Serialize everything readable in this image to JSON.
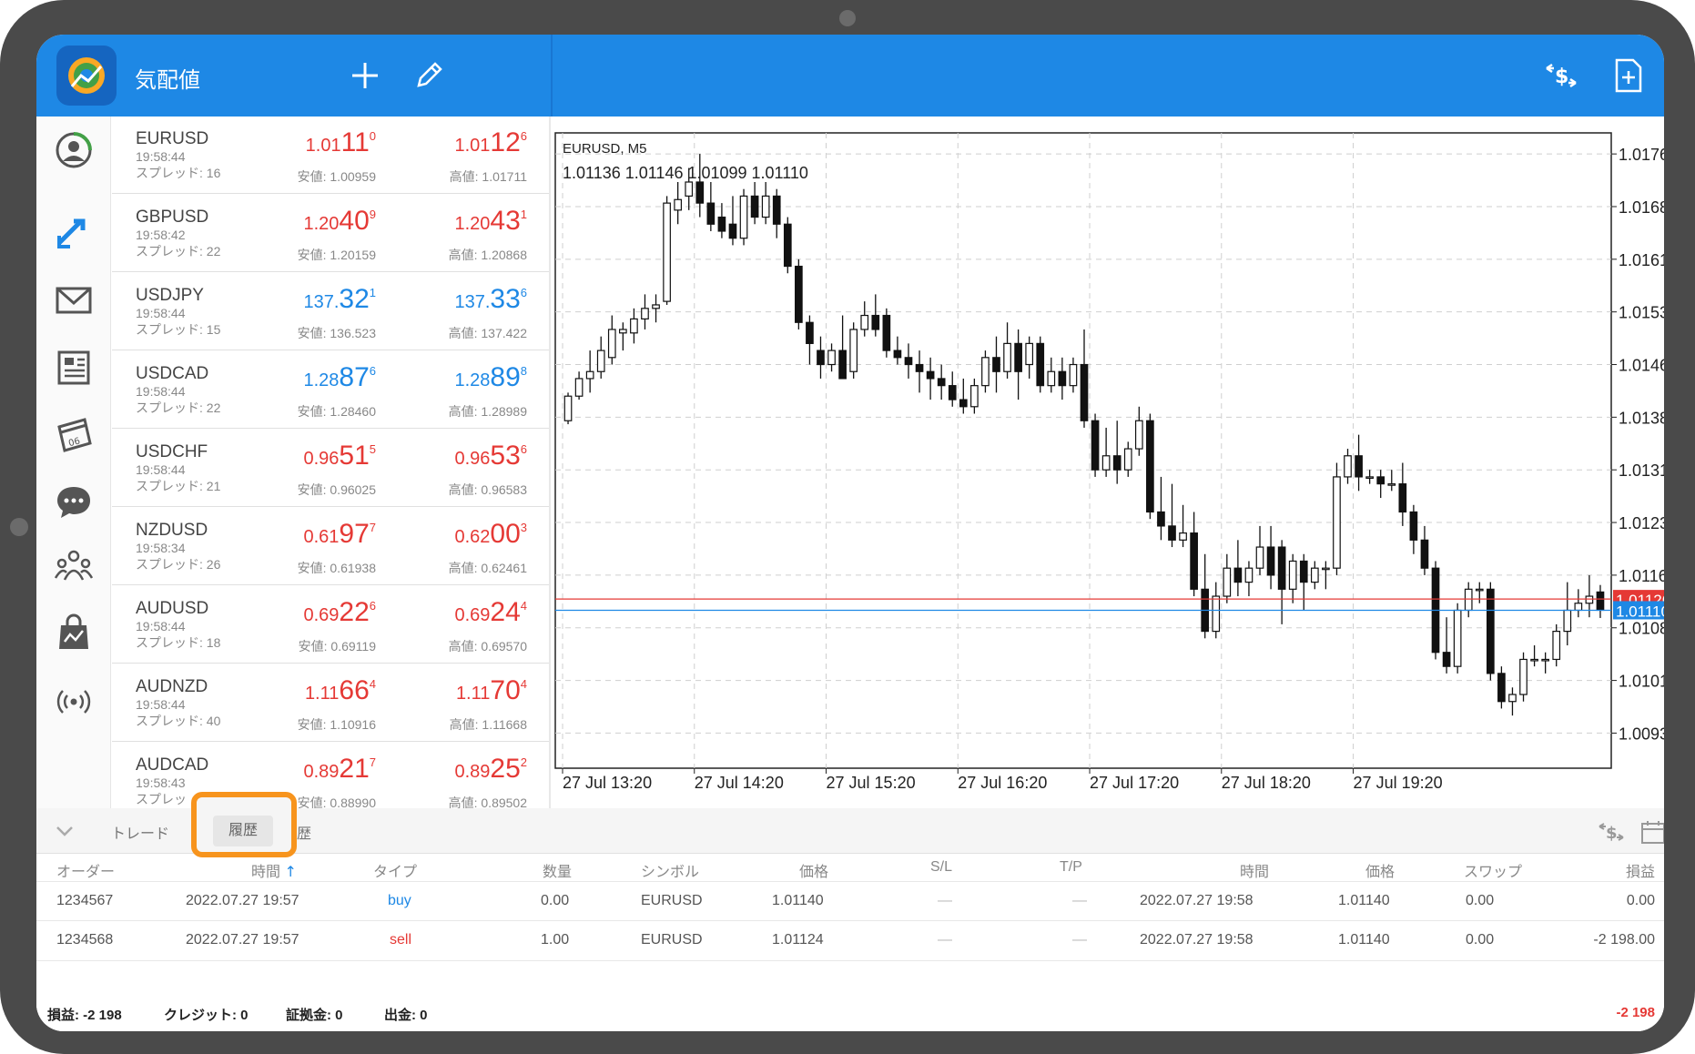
{
  "app": {
    "title": "気配値",
    "add_label": "+",
    "brand_color": "#1e88e5"
  },
  "rail_icons": [
    "account-icon",
    "trade-arrows-icon",
    "mail-icon",
    "news-icon",
    "calendar-icon",
    "chat-icon",
    "community-icon",
    "market-icon",
    "signal-icon"
  ],
  "quotes": [
    {
      "symbol": "EURUSD",
      "time": "19:58:44",
      "spread": "スプレッド: 16",
      "bid_pre": "1.01",
      "bid_big": "11",
      "bid_sup": "0",
      "ask_pre": "1.01",
      "ask_big": "12",
      "ask_sup": "6",
      "low": "安値: 1.00959",
      "high": "高値: 1.01711",
      "color": "red"
    },
    {
      "symbol": "GBPUSD",
      "time": "19:58:42",
      "spread": "スプレッド: 22",
      "bid_pre": "1.20",
      "bid_big": "40",
      "bid_sup": "9",
      "ask_pre": "1.20",
      "ask_big": "43",
      "ask_sup": "1",
      "low": "安値: 1.20159",
      "high": "高値: 1.20868",
      "color": "red"
    },
    {
      "symbol": "USDJPY",
      "time": "19:58:44",
      "spread": "スプレッド: 15",
      "bid_pre": "137.",
      "bid_big": "32",
      "bid_sup": "1",
      "ask_pre": "137.",
      "ask_big": "33",
      "ask_sup": "6",
      "low": "安値: 136.523",
      "high": "高値: 137.422",
      "color": "blue"
    },
    {
      "symbol": "USDCAD",
      "time": "19:58:44",
      "spread": "スプレッド: 22",
      "bid_pre": "1.28",
      "bid_big": "87",
      "bid_sup": "6",
      "ask_pre": "1.28",
      "ask_big": "89",
      "ask_sup": "8",
      "low": "安値: 1.28460",
      "high": "高値: 1.28989",
      "color": "blue"
    },
    {
      "symbol": "USDCHF",
      "time": "19:58:44",
      "spread": "スプレッド: 21",
      "bid_pre": "0.96",
      "bid_big": "51",
      "bid_sup": "5",
      "ask_pre": "0.96",
      "ask_big": "53",
      "ask_sup": "6",
      "low": "安値: 0.96025",
      "high": "高値: 0.96583",
      "color": "red"
    },
    {
      "symbol": "NZDUSD",
      "time": "19:58:34",
      "spread": "スプレッド: 26",
      "bid_pre": "0.61",
      "bid_big": "97",
      "bid_sup": "7",
      "ask_pre": "0.62",
      "ask_big": "00",
      "ask_sup": "3",
      "low": "安値: 0.61938",
      "high": "高値: 0.62461",
      "color": "red"
    },
    {
      "symbol": "AUDUSD",
      "time": "19:58:44",
      "spread": "スプレッド: 18",
      "bid_pre": "0.69",
      "bid_big": "22",
      "bid_sup": "6",
      "ask_pre": "0.69",
      "ask_big": "24",
      "ask_sup": "4",
      "low": "安値: 0.69119",
      "high": "高値: 0.69570",
      "color": "red"
    },
    {
      "symbol": "AUDNZD",
      "time": "19:58:44",
      "spread": "スプレッド: 40",
      "bid_pre": "1.11",
      "bid_big": "66",
      "bid_sup": "4",
      "ask_pre": "1.11",
      "ask_big": "70",
      "ask_sup": "4",
      "low": "安値: 1.10916",
      "high": "高値: 1.11668",
      "color": "red"
    },
    {
      "symbol": "AUDCAD",
      "time": "19:58:43",
      "spread": "スプレッ",
      "bid_pre": "0.89",
      "bid_big": "21",
      "bid_sup": "7",
      "ask_pre": "0.89",
      "ask_big": "25",
      "ask_sup": "2",
      "low": "安値: 0.88990",
      "high": "高値: 0.89502",
      "color": "red"
    }
  ],
  "chart_data": {
    "type": "candlestick",
    "title": "EURUSD, M5",
    "ohlc_label": "1.01136 1.01146 1.01099 1.01110",
    "ylim": [
      1.00885,
      1.0179
    ],
    "y_ticks": [
      "1.01760",
      "1.01685",
      "1.01610",
      "1.01535",
      "1.01460",
      "1.01385",
      "1.01310",
      "1.01235",
      "1.01160",
      "1.01085",
      "1.01010",
      "1.00935"
    ],
    "x_ticks": [
      "27 Jul 13:20",
      "27 Jul 14:20",
      "27 Jul 15:20",
      "27 Jul 16:20",
      "27 Jul 17:20",
      "27 Jul 18:20",
      "27 Jul 19:20"
    ],
    "ask_line": {
      "value": 1.01126,
      "label": "1.01126",
      "color": "#e53935"
    },
    "bid_line": {
      "value": 1.0111,
      "label": "1.01110",
      "color": "#1e88e5"
    },
    "candles": [
      [
        1.0138,
        1.01415,
        1.01375,
        1.0142
      ],
      [
        1.01415,
        1.0144,
        1.0141,
        1.0145
      ],
      [
        1.0144,
        1.0145,
        1.0142,
        1.0148
      ],
      [
        1.0145,
        1.0148,
        1.0144,
        1.015
      ],
      [
        1.0147,
        1.0151,
        1.0146,
        1.0153
      ],
      [
        1.01505,
        1.0151,
        1.0148,
        1.0152
      ],
      [
        1.01505,
        1.01525,
        1.0149,
        1.0154
      ],
      [
        1.01525,
        1.0154,
        1.0151,
        1.0156
      ],
      [
        1.0154,
        1.01545,
        1.0152,
        1.0156
      ],
      [
        1.0155,
        1.0169,
        1.01545,
        1.017
      ],
      [
        1.0168,
        1.01695,
        1.0166,
        1.0172
      ],
      [
        1.017,
        1.0172,
        1.0168,
        1.0174
      ],
      [
        1.0172,
        1.0169,
        1.0167,
        1.0176
      ],
      [
        1.0169,
        1.0166,
        1.0165,
        1.0172
      ],
      [
        1.0167,
        1.0165,
        1.0164,
        1.0169
      ],
      [
        1.0166,
        1.0164,
        1.0163,
        1.017
      ],
      [
        1.0164,
        1.017,
        1.0163,
        1.0171
      ],
      [
        1.017,
        1.0167,
        1.0166,
        1.0172
      ],
      [
        1.0167,
        1.017,
        1.0166,
        1.0172
      ],
      [
        1.017,
        1.0166,
        1.0164,
        1.0171
      ],
      [
        1.0166,
        1.016,
        1.0159,
        1.0167
      ],
      [
        1.016,
        1.0152,
        1.0151,
        1.0161
      ],
      [
        1.0152,
        1.0149,
        1.0146,
        1.0153
      ],
      [
        1.0148,
        1.0146,
        1.0144,
        1.015
      ],
      [
        1.0146,
        1.0148,
        1.0145,
        1.0149
      ],
      [
        1.0148,
        1.0144,
        1.0144,
        1.0153
      ],
      [
        1.0145,
        1.0151,
        1.0144,
        1.0152
      ],
      [
        1.0151,
        1.0153,
        1.015,
        1.0155
      ],
      [
        1.0153,
        1.0151,
        1.015,
        1.0156
      ],
      [
        1.0153,
        1.0148,
        1.0147,
        1.0154
      ],
      [
        1.0148,
        1.0147,
        1.0146,
        1.015
      ],
      [
        1.0147,
        1.0146,
        1.0144,
        1.0149
      ],
      [
        1.0146,
        1.0145,
        1.0142,
        1.0148
      ],
      [
        1.0145,
        1.0144,
        1.0141,
        1.0147
      ],
      [
        1.0144,
        1.0143,
        1.0141,
        1.0146
      ],
      [
        1.0143,
        1.0141,
        1.014,
        1.0145
      ],
      [
        1.0141,
        1.014,
        1.0139,
        1.0144
      ],
      [
        1.014,
        1.0143,
        1.0139,
        1.0144
      ],
      [
        1.0143,
        1.0147,
        1.0142,
        1.0148
      ],
      [
        1.0147,
        1.0145,
        1.0142,
        1.015
      ],
      [
        1.0145,
        1.0149,
        1.0144,
        1.0152
      ],
      [
        1.0149,
        1.0145,
        1.0141,
        1.0151
      ],
      [
        1.0146,
        1.0149,
        1.0144,
        1.015
      ],
      [
        1.0149,
        1.0143,
        1.0142,
        1.015
      ],
      [
        1.0143,
        1.0145,
        1.0142,
        1.0147
      ],
      [
        1.0145,
        1.0143,
        1.0141,
        1.0147
      ],
      [
        1.0143,
        1.0146,
        1.0142,
        1.0147
      ],
      [
        1.0146,
        1.0138,
        1.0137,
        1.0151
      ],
      [
        1.0138,
        1.0131,
        1.013,
        1.0139
      ],
      [
        1.0131,
        1.0133,
        1.013,
        1.0137
      ],
      [
        1.0133,
        1.0131,
        1.0129,
        1.0138
      ],
      [
        1.0131,
        1.0134,
        1.013,
        1.0135
      ],
      [
        1.0134,
        1.0138,
        1.0133,
        1.014
      ],
      [
        1.0138,
        1.0125,
        1.0124,
        1.0139
      ],
      [
        1.0125,
        1.0123,
        1.0121,
        1.013
      ],
      [
        1.0123,
        1.0121,
        1.012,
        1.0129
      ],
      [
        1.0121,
        1.0122,
        1.012,
        1.0126
      ],
      [
        1.0122,
        1.0114,
        1.0113,
        1.0125
      ],
      [
        1.0114,
        1.0108,
        1.0107,
        1.0119
      ],
      [
        1.0108,
        1.0113,
        1.0107,
        1.0115
      ],
      [
        1.0113,
        1.0117,
        1.0112,
        1.0119
      ],
      [
        1.0117,
        1.0115,
        1.0113,
        1.0121
      ],
      [
        1.0115,
        1.0117,
        1.0113,
        1.0118
      ],
      [
        1.0117,
        1.012,
        1.0116,
        1.0123
      ],
      [
        1.012,
        1.0116,
        1.0114,
        1.0123
      ],
      [
        1.012,
        1.0114,
        1.0109,
        1.0121
      ],
      [
        1.0114,
        1.0118,
        1.0112,
        1.0119
      ],
      [
        1.0118,
        1.0115,
        1.0111,
        1.0119
      ],
      [
        1.0115,
        1.0117,
        1.0114,
        1.0118
      ],
      [
        1.0117,
        1.0117,
        1.0114,
        1.0118
      ],
      [
        1.0117,
        1.013,
        1.0116,
        1.0132
      ],
      [
        1.013,
        1.0133,
        1.0129,
        1.0134
      ],
      [
        1.0133,
        1.013,
        1.0128,
        1.0136
      ],
      [
        1.013,
        1.013,
        1.0129,
        1.0131
      ],
      [
        1.013,
        1.0129,
        1.0127,
        1.0131
      ],
      [
        1.0129,
        1.0129,
        1.0128,
        1.0131
      ],
      [
        1.0129,
        1.0125,
        1.0123,
        1.0132
      ],
      [
        1.0125,
        1.0121,
        1.0119,
        1.0126
      ],
      [
        1.0121,
        1.0117,
        1.0116,
        1.0123
      ],
      [
        1.0117,
        1.0105,
        1.0104,
        1.0118
      ],
      [
        1.0105,
        1.0103,
        1.0102,
        1.011
      ],
      [
        1.0103,
        1.0111,
        1.0102,
        1.0112
      ],
      [
        1.0111,
        1.0114,
        1.011,
        1.0115
      ],
      [
        1.0114,
        1.0114,
        1.0112,
        1.0115
      ],
      [
        1.0114,
        1.0102,
        1.0101,
        1.0115
      ],
      [
        1.0102,
        1.0098,
        1.0097,
        1.0103
      ],
      [
        1.0098,
        1.0099,
        1.0096,
        1.01
      ],
      [
        1.0099,
        1.0104,
        1.0098,
        1.0105
      ],
      [
        1.0104,
        1.0104,
        1.0103,
        1.0106
      ],
      [
        1.0104,
        1.0104,
        1.0102,
        1.0105
      ],
      [
        1.0104,
        1.0108,
        1.0103,
        1.0109
      ],
      [
        1.0108,
        1.0111,
        1.0106,
        1.0115
      ],
      [
        1.0111,
        1.0112,
        1.011,
        1.0114
      ],
      [
        1.0112,
        1.0113,
        1.011,
        1.0116
      ],
      [
        1.01136,
        1.0111,
        1.01099,
        1.01146
      ]
    ]
  },
  "bottom": {
    "tabs": {
      "trade": "トレード",
      "history": "履歴",
      "log": "ログ履歴"
    },
    "history_active": true,
    "highlight_color": "#f7941d",
    "headers": {
      "order": "オーダー",
      "time": "時間",
      "type": "タイプ",
      "volume": "数量",
      "symbol": "シンボル",
      "price": "価格",
      "sl": "S/L",
      "tp": "T/P",
      "close_time": "時間",
      "close_price": "価格",
      "swap": "スワップ",
      "profit": "損益"
    },
    "rows": [
      {
        "order": "1234567",
        "time": "2022.07.27 19:57",
        "type": "buy",
        "volume": "0.00",
        "symbol": "EURUSD",
        "price": "1.01140",
        "sl": "—",
        "tp": "—",
        "close_time": "2022.07.27 19:58",
        "close_price": "1.01140",
        "swap": "0.00",
        "profit": "0.00"
      },
      {
        "order": "1234568",
        "time": "2022.07.27 19:57",
        "type": "sell",
        "volume": "1.00",
        "symbol": "EURUSD",
        "price": "1.01124",
        "sl": "—",
        "tp": "—",
        "close_time": "2022.07.27 19:58",
        "close_price": "1.01140",
        "swap": "0.00",
        "profit": "-2 198.00"
      }
    ],
    "summary": {
      "profit": "損益:  -2 198",
      "credit": "クレジット:  0",
      "margin": "証拠金:  0",
      "withdraw": "出金:  0",
      "total": "-2 198"
    }
  }
}
